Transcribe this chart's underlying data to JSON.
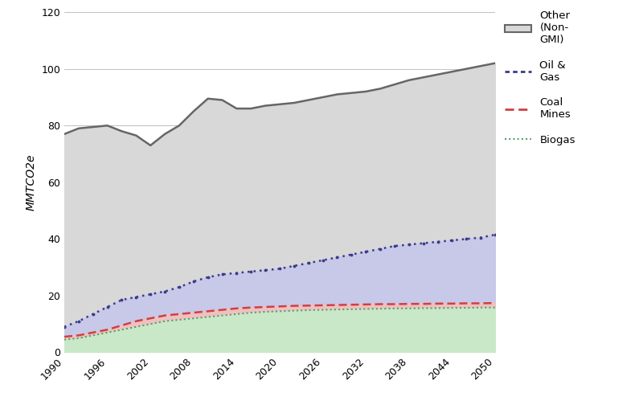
{
  "years": [
    1990,
    1992,
    1994,
    1996,
    1998,
    2000,
    2002,
    2004,
    2006,
    2008,
    2010,
    2012,
    2014,
    2016,
    2018,
    2020,
    2022,
    2024,
    2026,
    2028,
    2030,
    2032,
    2034,
    2036,
    2038,
    2040,
    2042,
    2044,
    2046,
    2048,
    2050
  ],
  "biogas": [
    4.5,
    5.0,
    6.0,
    7.0,
    8.0,
    9.0,
    10.0,
    11.0,
    11.5,
    12.0,
    12.5,
    13.0,
    13.5,
    14.0,
    14.3,
    14.5,
    14.7,
    14.9,
    15.0,
    15.1,
    15.2,
    15.3,
    15.4,
    15.5,
    15.5,
    15.6,
    15.6,
    15.7,
    15.7,
    15.8,
    15.8
  ],
  "coal_mines": [
    5.5,
    6.0,
    7.0,
    8.0,
    9.5,
    11.0,
    12.0,
    13.0,
    13.5,
    14.0,
    14.5,
    15.0,
    15.5,
    15.8,
    16.0,
    16.2,
    16.4,
    16.5,
    16.6,
    16.7,
    16.8,
    16.9,
    17.0,
    17.0,
    17.1,
    17.1,
    17.2,
    17.2,
    17.3,
    17.3,
    17.4
  ],
  "oil_gas": [
    9.0,
    11.0,
    13.5,
    16.0,
    18.5,
    19.5,
    20.5,
    21.5,
    23.0,
    25.0,
    26.5,
    27.5,
    28.0,
    28.5,
    29.0,
    29.5,
    30.5,
    31.5,
    32.5,
    33.5,
    34.5,
    35.5,
    36.5,
    37.5,
    38.0,
    38.5,
    39.0,
    39.5,
    40.0,
    40.5,
    41.5
  ],
  "other_non_gmi": [
    77.0,
    79.0,
    79.5,
    80.0,
    78.0,
    76.5,
    73.0,
    77.0,
    80.0,
    85.0,
    89.5,
    89.0,
    86.0,
    86.0,
    87.0,
    87.5,
    88.0,
    89.0,
    90.0,
    91.0,
    91.5,
    92.0,
    93.0,
    94.5,
    96.0,
    97.0,
    98.0,
    99.0,
    100.0,
    101.0,
    102.0
  ],
  "biogas_line_color": "#5a9e6f",
  "biogas_fill_color": "#c8e8c8",
  "coal_line_color": "#d04040",
  "coal_fill_color": "#f0c0c0",
  "oil_gas_line_color": "#3a3a8c",
  "oil_gas_fill_color": "#c8c8e8",
  "other_line_color": "#666666",
  "other_fill_color": "#d8d8d8",
  "ylabel": "MMTCO2e",
  "ylim": [
    0,
    120
  ],
  "yticks": [
    0,
    20,
    40,
    60,
    80,
    100,
    120
  ],
  "xticks": [
    1990,
    1996,
    2002,
    2008,
    2014,
    2020,
    2026,
    2032,
    2038,
    2044,
    2050
  ],
  "bg_color": "#ffffff",
  "grid_color": "#c0c0c0"
}
